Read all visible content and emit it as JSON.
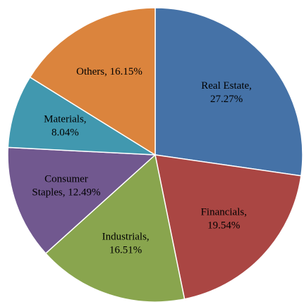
{
  "chart_data": {
    "type": "pie",
    "values": [
      27.27,
      19.54,
      16.51,
      12.49,
      8.04,
      16.15
    ],
    "value_labels": [
      "Real Estate,\n27.27%",
      "Financials,\n19.54%",
      "Industrials,\n16.51%",
      "Consumer\nStaples, 12.49%",
      "Materials,\n8.04%",
      "Others, 16.15%"
    ],
    "colors": [
      "#4572a7",
      "#aa4643",
      "#89a54e",
      "#71588f",
      "#4198af",
      "#db843d"
    ]
  }
}
